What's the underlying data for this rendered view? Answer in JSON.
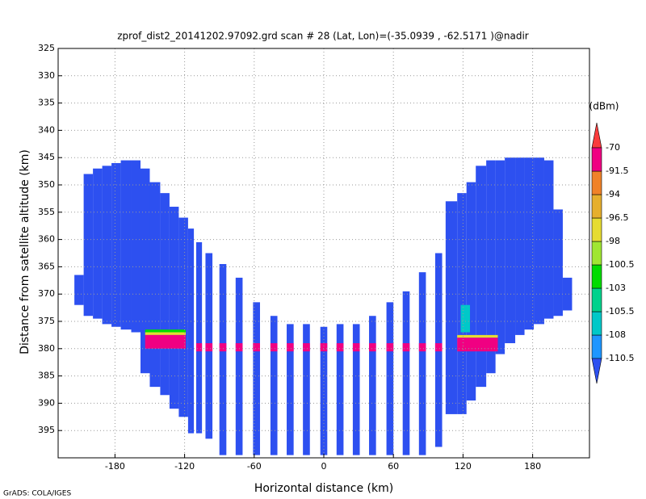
{
  "chart_data": {
    "type": "heatmap",
    "title": "zprof_dist2_20141202.97092.grd  scan # 28  (Lat, Lon)=(-35.0939 , -62.5171 )@nadir",
    "xlabel": "Horizontal distance (km)",
    "ylabel": "Distance from satellite altitude (km)",
    "credit": "GrADS: COLA/IGES",
    "xlim": [
      -229,
      229
    ],
    "xticks": [
      -180,
      -120,
      -60,
      0,
      60,
      120,
      180
    ],
    "ylim": [
      325,
      400
    ],
    "yticks": [
      325,
      330,
      335,
      340,
      345,
      350,
      355,
      360,
      365,
      370,
      375,
      380,
      385,
      390,
      395
    ],
    "grid": true,
    "colorbar": {
      "unit": "(dBm)",
      "levels": [
        -110.5,
        -108,
        -105.5,
        -103,
        -100.5,
        -98,
        -96.5,
        -94,
        -91.5,
        -70
      ],
      "colors": [
        "#2d50f0",
        "#1e96ff",
        "#00c8c8",
        "#00d28c",
        "#00dc00",
        "#a0e632",
        "#e6dc32",
        "#e6af2d",
        "#f08228",
        "#f00082",
        "#fa3c3c"
      ]
    },
    "swath": [
      {
        "value": -112,
        "columns": [
          {
            "x": [
              -215,
              -207
            ],
            "top": 366.5,
            "bottom": 372
          },
          {
            "x": [
              -207,
              -199
            ],
            "top": 348,
            "bottom": 374
          },
          {
            "x": [
              -199,
              -191
            ],
            "top": 347,
            "bottom": 374.5
          },
          {
            "x": [
              -191,
              -183
            ],
            "top": 346.5,
            "bottom": 375.5
          },
          {
            "x": [
              -183,
              -175
            ],
            "top": 346,
            "bottom": 376
          },
          {
            "x": [
              -175,
              -166
            ],
            "top": 345.5,
            "bottom": 376.5
          },
          {
            "x": [
              -166,
              -158
            ],
            "top": 345.5,
            "bottom": 377
          },
          {
            "x": [
              -158,
              -150
            ],
            "top": 347,
            "bottom": 384.5
          },
          {
            "x": [
              -150,
              -141
            ],
            "top": 349.5,
            "bottom": 387
          },
          {
            "x": [
              -141,
              -133
            ],
            "top": 351.5,
            "bottom": 388.5
          },
          {
            "x": [
              -133,
              -125
            ],
            "top": 354,
            "bottom": 391
          },
          {
            "x": [
              -125,
              -117
            ],
            "top": 356,
            "bottom": 392.5
          },
          {
            "x": [
              -117,
              -112
            ],
            "top": 358,
            "bottom": 395.5
          }
        ]
      },
      {
        "value": -112,
        "columns": [
          {
            "x": [
              -110,
              -105
            ],
            "top": 360.5,
            "bottom": 395.5
          },
          {
            "x": [
              -102,
              -96
            ],
            "top": 362.5,
            "bottom": 396.5
          },
          {
            "x": [
              -90,
              -84
            ],
            "top": 364.5,
            "bottom": 399.5
          },
          {
            "x": [
              -76,
              -70
            ],
            "top": 367,
            "bottom": 399.5
          },
          {
            "x": [
              -61,
              -55
            ],
            "top": 371.5,
            "bottom": 399.5
          },
          {
            "x": [
              -46,
              -40
            ],
            "top": 374,
            "bottom": 399.5
          },
          {
            "x": [
              -32,
              -26
            ],
            "top": 375.5,
            "bottom": 399.5
          },
          {
            "x": [
              -18,
              -12
            ],
            "top": 375.5,
            "bottom": 399.5
          },
          {
            "x": [
              -3,
              3
            ],
            "top": 376,
            "bottom": 399.5
          },
          {
            "x": [
              11,
              17
            ],
            "top": 375.5,
            "bottom": 399.5
          },
          {
            "x": [
              25,
              31
            ],
            "top": 375.5,
            "bottom": 399.5
          },
          {
            "x": [
              39,
              45
            ],
            "top": 374,
            "bottom": 399.5
          },
          {
            "x": [
              54,
              60
            ],
            "top": 371.5,
            "bottom": 399.5
          },
          {
            "x": [
              68,
              74
            ],
            "top": 369.5,
            "bottom": 399.5
          },
          {
            "x": [
              82,
              88
            ],
            "top": 366,
            "bottom": 399.5
          },
          {
            "x": [
              96,
              102
            ],
            "top": 362.5,
            "bottom": 398
          }
        ]
      },
      {
        "value": -112,
        "columns": [
          {
            "x": [
              105,
              115
            ],
            "top": 353,
            "bottom": 392
          },
          {
            "x": [
              115,
              123
            ],
            "top": 351.5,
            "bottom": 392
          },
          {
            "x": [
              123,
              131
            ],
            "top": 349.5,
            "bottom": 389.5
          },
          {
            "x": [
              131,
              140
            ],
            "top": 346.5,
            "bottom": 387
          },
          {
            "x": [
              140,
              148
            ],
            "top": 345.5,
            "bottom": 384.5
          },
          {
            "x": [
              148,
              156
            ],
            "top": 345.5,
            "bottom": 381
          },
          {
            "x": [
              156,
              165
            ],
            "top": 345,
            "bottom": 379
          },
          {
            "x": [
              165,
              173
            ],
            "top": 345,
            "bottom": 377.5
          },
          {
            "x": [
              173,
              181
            ],
            "top": 345,
            "bottom": 376.5
          },
          {
            "x": [
              181,
              190
            ],
            "top": 345,
            "bottom": 375.5
          },
          {
            "x": [
              190,
              198
            ],
            "top": 345.5,
            "bottom": 374.5
          },
          {
            "x": [
              198,
              206
            ],
            "top": 354.5,
            "bottom": 374
          },
          {
            "x": [
              206,
              214
            ],
            "top": 367,
            "bottom": 373
          }
        ]
      }
    ],
    "clutter": [
      {
        "x": [
          -154,
          -119
        ],
        "top": 376.5,
        "bottom": 377,
        "value": -102
      },
      {
        "x": [
          -154,
          -119
        ],
        "top": 377,
        "bottom": 377.5,
        "value": -97
      },
      {
        "x": [
          -154,
          -119
        ],
        "top": 377.5,
        "bottom": 380,
        "value": -85
      },
      {
        "x": [
          -110,
          102
        ],
        "top": 379,
        "bottom": 380.5,
        "value": -80
      },
      {
        "x": [
          118,
          126
        ],
        "top": 372,
        "bottom": 377,
        "value": -106
      },
      {
        "x": [
          115,
          150
        ],
        "top": 377.5,
        "bottom": 378,
        "value": -97
      },
      {
        "x": [
          115,
          150
        ],
        "top": 378,
        "bottom": 380.5,
        "value": -85
      }
    ]
  }
}
